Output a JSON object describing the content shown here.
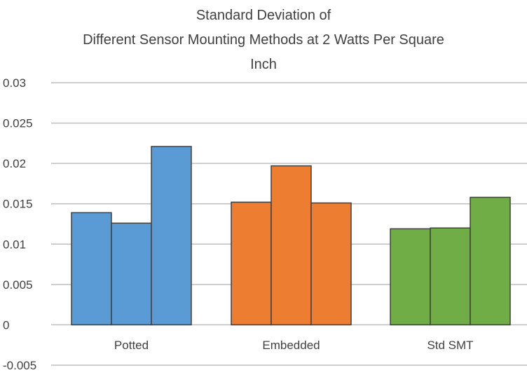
{
  "chart_data": {
    "type": "bar",
    "title_lines": [
      "Standard Deviation of",
      "Different Sensor Mounting Methods at 2 Watts Per Square",
      "Inch"
    ],
    "xlabel": "",
    "ylabel": "",
    "ylim": [
      -0.005,
      0.03
    ],
    "yticks": [
      "0.03",
      "0.025",
      "0.02",
      "0.015",
      "0.01",
      "0.005",
      "0",
      "-0.005"
    ],
    "grid": true,
    "legend": "none",
    "groups": [
      {
        "label": "Potted",
        "color": "#5b9bd5",
        "values": [
          0.0139,
          0.0126,
          0.0221
        ]
      },
      {
        "label": "Embedded",
        "color": "#ed7d31",
        "values": [
          0.0152,
          0.0197,
          0.0151
        ]
      },
      {
        "label": "Std SMT",
        "color": "#70ad47",
        "values": [
          0.0119,
          0.012,
          0.0158
        ]
      }
    ]
  }
}
